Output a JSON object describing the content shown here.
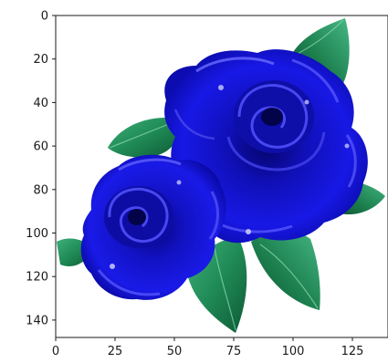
{
  "chart_data": {
    "type": "image",
    "subject": "two blue roses with green leaves on white background",
    "xlim": [
      0,
      140
    ],
    "ylim": [
      148,
      0
    ],
    "x_ticks": [
      0,
      25,
      50,
      75,
      100,
      125
    ],
    "y_ticks": [
      0,
      20,
      40,
      60,
      80,
      100,
      120,
      140
    ],
    "x_tick_labels": [
      "0",
      "25",
      "50",
      "75",
      "100",
      "125"
    ],
    "y_tick_labels": [
      "0",
      "20",
      "40",
      "60",
      "80",
      "100",
      "120",
      "140"
    ],
    "grid": false,
    "colors": {
      "rose_dark": "#0a0a9a",
      "rose_mid": "#1414d8",
      "rose_light": "#5a5aff",
      "leaf_dark": "#0e5a36",
      "leaf_mid": "#1f8a55",
      "leaf_light": "#3fb07a",
      "background": "#ffffff",
      "axis": "#1a1a1a"
    }
  }
}
